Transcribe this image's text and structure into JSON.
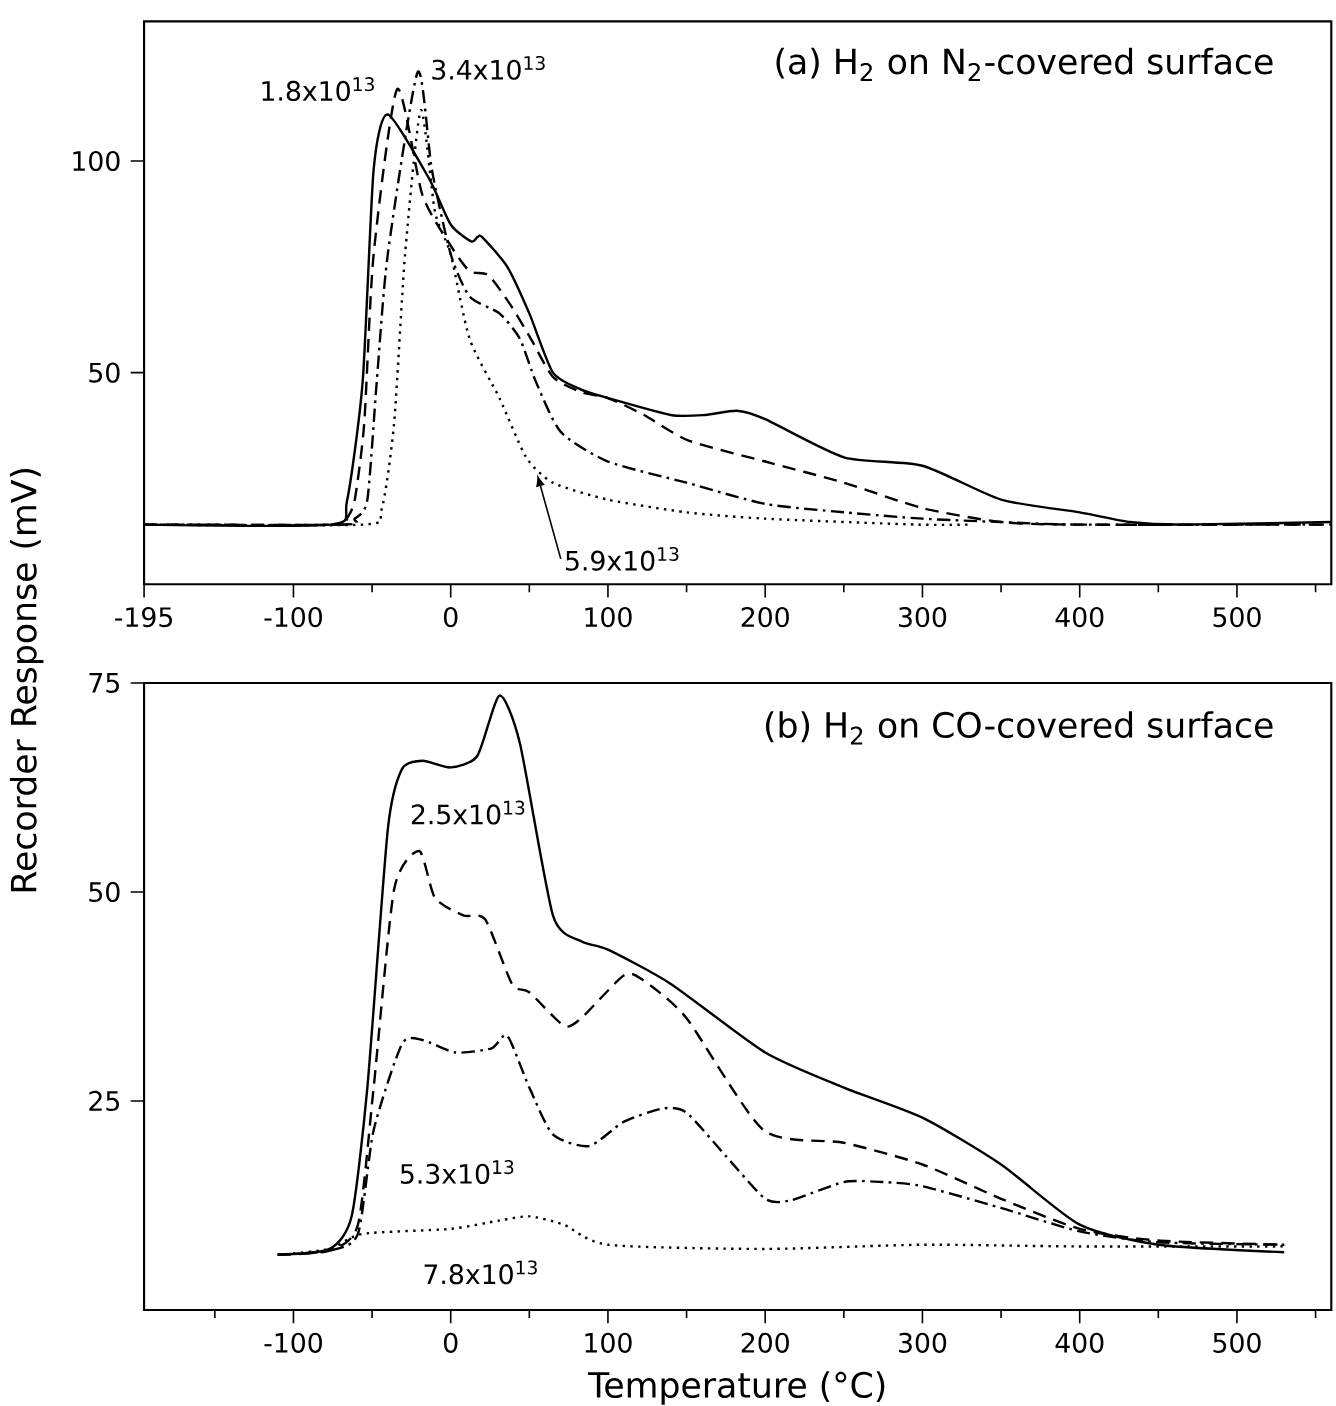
{
  "chart_data": [
    {
      "type": "line",
      "title": "(a) H$_{2}$ on N$_{2}$-covered surface",
      "ylabel": "Recorder Response (mV)",
      "xlim": [
        -195,
        560
      ],
      "ylim": [
        0,
        133
      ],
      "xticks": [
        -195,
        -100,
        {
          "value": -50,
          "label": null
        },
        0,
        {
          "value": 50,
          "label": null
        },
        100,
        {
          "value": 150,
          "label": null
        },
        200,
        {
          "value": 250,
          "label": null
        },
        300,
        {
          "value": 350,
          "label": null
        },
        400,
        {
          "value": 450,
          "label": null
        },
        500,
        {
          "value": 550,
          "label": null
        }
      ],
      "yticks": [
        50,
        100
      ],
      "series": [
        {
          "color": "#000000",
          "line_style": "solid",
          "x": [
            -195,
            -76,
            -66,
            -56,
            -49,
            -40,
            -14,
            0,
            13,
            17,
            20,
            36,
            50,
            65,
            83,
            100,
            140,
            162,
            182,
            200,
            250,
            300,
            350,
            400,
            432,
            465,
            560
          ],
          "values": [
            14.1,
            14.1,
            19.6,
            47.8,
            98,
            111,
            96,
            85,
            81,
            82,
            82,
            75,
            64,
            50,
            46,
            44,
            40,
            40,
            41,
            39,
            30,
            28,
            20,
            17,
            14.7,
            14.1,
            14.7
          ]
        },
        {
          "name": "1.8x10$^{13}$",
          "color": "#000000",
          "line_style": "dashed",
          "x": [
            -195,
            -70,
            -66,
            -61,
            -55,
            -49,
            -34,
            -18,
            0,
            12,
            24,
            38,
            51,
            65,
            83,
            100,
            123,
            151,
            200,
            250,
            300,
            350,
            398,
            560
          ],
          "values": [
            14.1,
            14.1,
            15.5,
            20,
            38,
            78,
            117,
            92,
            80,
            74,
            73,
            66,
            58,
            49,
            45.4,
            44,
            40,
            34,
            29,
            24,
            18,
            14.7,
            14.1,
            14.1
          ]
        },
        {
          "name": "3.4x10$^{13}$",
          "color": "#000000",
          "line_style": "dashdot",
          "x": [
            -195,
            -68,
            -61,
            -53,
            -47,
            -40,
            -21,
            -12,
            0,
            12,
            31,
            44,
            54,
            70,
            100,
            150,
            200,
            250,
            300,
            350,
            398,
            560
          ],
          "values": [
            14.1,
            14.1,
            15.5,
            20,
            48,
            78,
            121,
            98,
            78,
            68,
            64,
            58,
            48,
            36,
            29,
            24,
            19,
            17,
            15.5,
            14.7,
            14.1,
            14.1
          ]
        },
        {
          "name": "5.9x10$^{13}$",
          "color": "#000000",
          "line_style": "dotted",
          "x": [
            -195,
            -56,
            -44,
            -36,
            -29,
            -19,
            -10,
            0,
            12,
            31,
            48,
            65,
            100,
            150,
            200,
            296,
            330
          ],
          "values": [
            14.1,
            14.1,
            17.6,
            38,
            78,
            112,
            88,
            78,
            58,
            44,
            30,
            24,
            20,
            17,
            15.5,
            14.1,
            14.1
          ]
        }
      ]
    },
    {
      "type": "line",
      "title": "(b) H$_{2}$ on CO-covered surface",
      "xlabel": "Temperature (°C)",
      "xlim": [
        -195,
        560
      ],
      "ylim": [
        0,
        75
      ],
      "xticks": [
        {
          "value": -150,
          "label": null
        },
        -100,
        {
          "value": -50,
          "label": null
        },
        0,
        {
          "value": 50,
          "label": null
        },
        100,
        {
          "value": 150,
          "label": null
        },
        200,
        {
          "value": 250,
          "label": null
        },
        300,
        {
          "value": 350,
          "label": null
        },
        400,
        {
          "value": 450,
          "label": null
        },
        500,
        {
          "value": 550,
          "label": null
        }
      ],
      "yticks": [
        25,
        50,
        75
      ],
      "series": [
        {
          "color": "#000000",
          "line_style": "solid",
          "x": [
            -110,
            -77,
            -63,
            -53,
            -40,
            -31,
            -18,
            0,
            17,
            31,
            44,
            65,
            83,
            100,
            140,
            200,
            250,
            300,
            350,
            400,
            450,
            530
          ],
          "values": [
            6.6,
            7.3,
            11.2,
            26.6,
            57.5,
            64.7,
            65.7,
            64.9,
            66.3,
            73.5,
            67.8,
            47.2,
            44.1,
            43.1,
            39,
            30.8,
            26.6,
            23,
            17.4,
            10.2,
            7.8,
            6.9
          ]
        },
        {
          "name": "2.5x10$^{13}$",
          "color": "#000000",
          "line_style": "dashed",
          "x": [
            -110,
            -77,
            -59,
            -49,
            -36,
            -20,
            -10,
            8,
            22,
            39,
            50,
            72,
            83,
            110,
            122,
            150,
            199,
            250,
            300,
            350,
            400,
            450,
            531
          ],
          "values": [
            6.6,
            7.1,
            10.2,
            26.6,
            50.3,
            54.9,
            49.3,
            47.2,
            46.7,
            39,
            38,
            34,
            34.9,
            40,
            39.5,
            34.9,
            21.5,
            20,
            17.4,
            13.3,
            9.7,
            8.3,
            7.8
          ]
        },
        {
          "name": "5.3x10$^{13}$",
          "color": "#000000",
          "line_style": "dashdot",
          "x": [
            -110,
            -77,
            -59,
            -49,
            -31,
            -18,
            3,
            26,
            36,
            50,
            65,
            88,
            110,
            135,
            150,
            175,
            200,
            216,
            250,
            275,
            300,
            350,
            400,
            450,
            531
          ],
          "values": [
            6.6,
            7.1,
            9.1,
            21.5,
            31.8,
            32.3,
            30.8,
            31.3,
            32.8,
            26.6,
            21,
            19.6,
            22.5,
            24.1,
            23.6,
            18.4,
            13.3,
            13.1,
            15.3,
            15.3,
            14.8,
            12.2,
            9.4,
            8.1,
            7.8
          ]
        },
        {
          "name": "7.8x10$^{13}$",
          "color": "#000000",
          "line_style": "dotted",
          "x": [
            -110,
            -77,
            -56,
            0,
            31,
            50,
            72,
            100,
            200,
            300,
            398,
            531
          ],
          "values": [
            6.6,
            7.3,
            9.1,
            9.7,
            10.7,
            11.2,
            10.2,
            7.8,
            7.3,
            7.8,
            7.6,
            7.6
          ]
        }
      ]
    }
  ]
}
